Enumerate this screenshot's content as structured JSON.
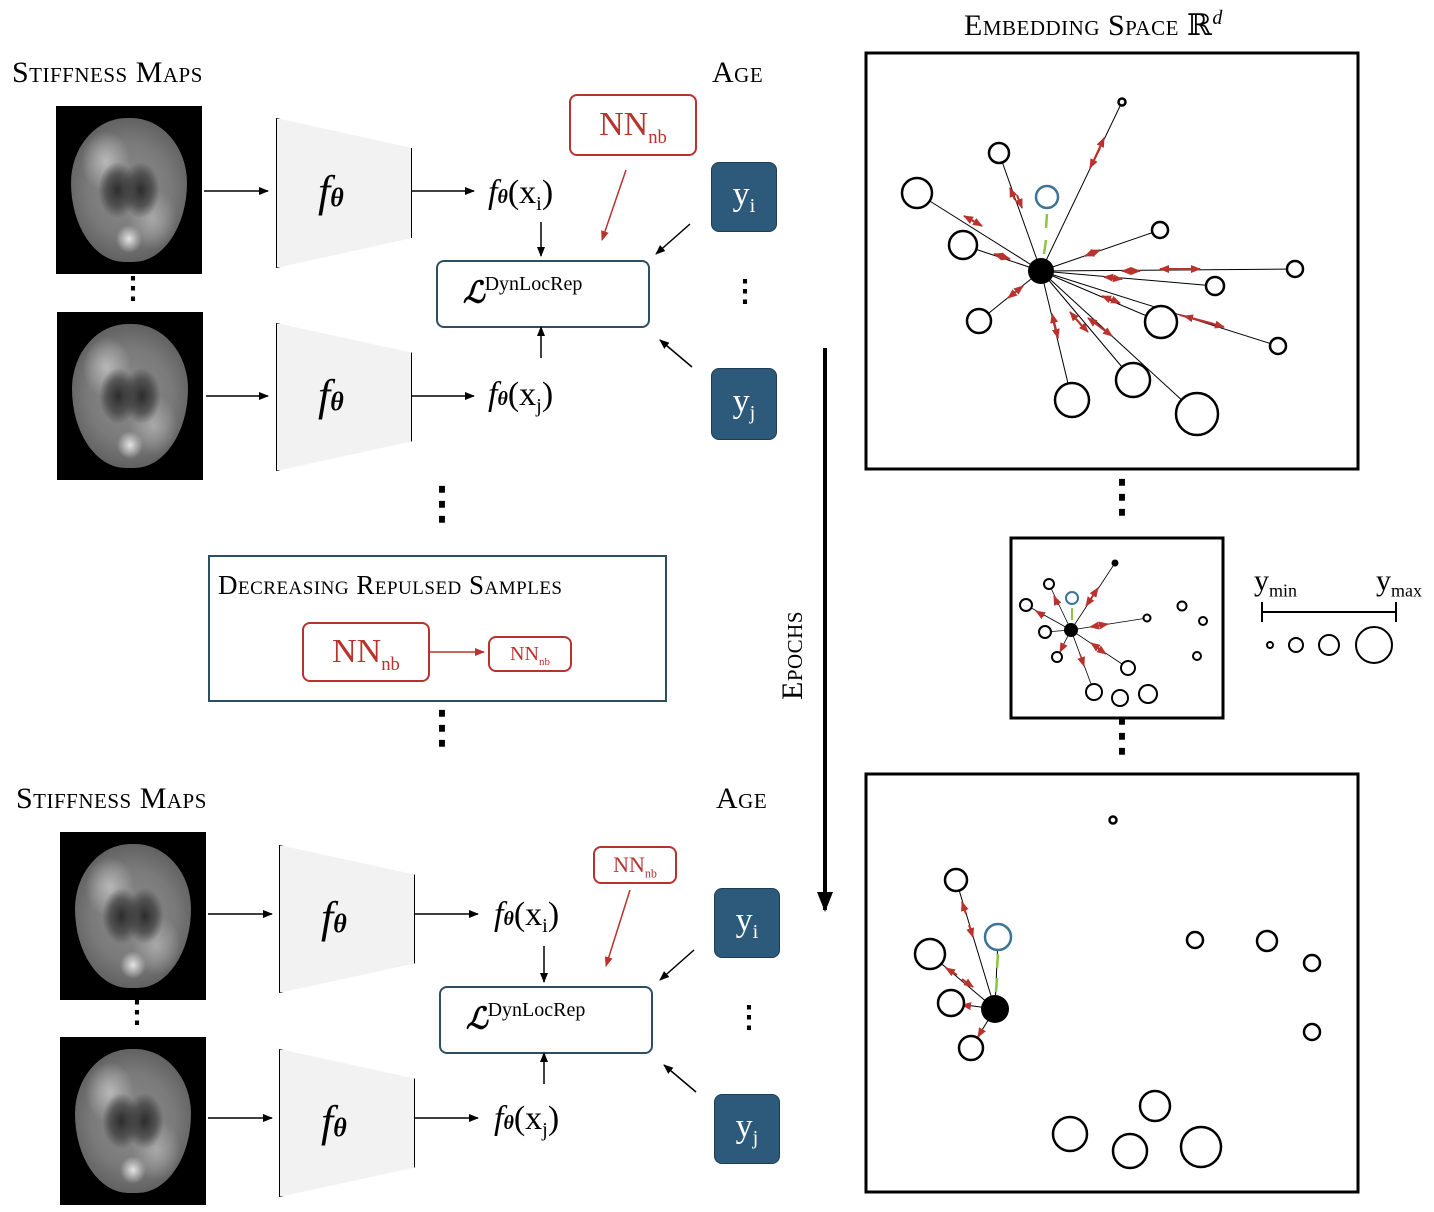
{
  "left_top": {
    "stiffness_title": "Stiffness Maps",
    "age_title": "Age",
    "encoder": "f",
    "encoder_sub": "θ",
    "feat_i": "(x",
    "feat_i_idx": "i",
    "feat_j_idx": "j",
    "loss": "ℒ",
    "loss_sup": "DynLocRep",
    "nn": "NN",
    "nn_sub": "nb",
    "y": "y",
    "yi_idx": "i",
    "yj_idx": "j",
    "vdots": "⋮",
    "hdots": "⋮"
  },
  "decreasing_box": {
    "title": "Decreasing Repulsed Samples",
    "nn": "NN",
    "nn_sub": "nb"
  },
  "left_bottom": {
    "stiffness_title": "Stiffness Maps",
    "age_title": "Age"
  },
  "epochs_label": "Epochs",
  "embedding": {
    "title": "Embedding Space ℝ",
    "title_sup": "d"
  },
  "legend": {
    "ymin": "y",
    "ymin_sub": "min",
    "ymax": "y",
    "ymax_sub": "max"
  },
  "colors": {
    "red": "#b8332e",
    "teal_box": "#2d5a7b",
    "anchor_blue": "#3d7396",
    "green": "#8cc63f"
  }
}
